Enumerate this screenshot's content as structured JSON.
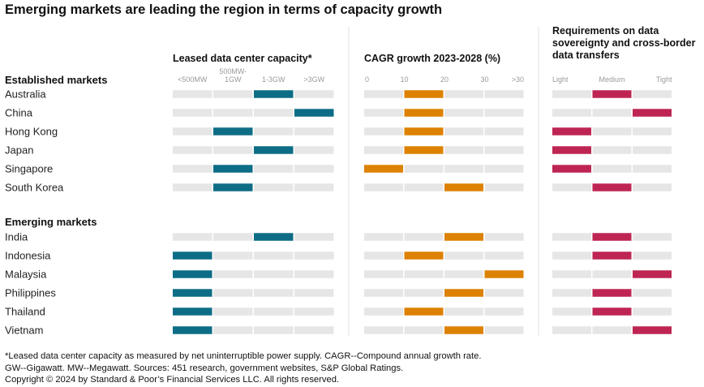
{
  "title": "Emerging markets are leading the region in terms of capacity growth",
  "chart_data": {
    "type": "table",
    "panels": [
      {
        "title": "Leased data center capacity*",
        "levels": [
          "<500MW",
          "500MW-\n1GW",
          "1-3GW",
          ">3GW"
        ],
        "color": "#0e6d86"
      },
      {
        "title": "CAGR growth 2023-2028 (%)",
        "levels": [
          "0",
          "10",
          "20",
          "30",
          ">30"
        ],
        "color": "#dd8100"
      },
      {
        "title": "Requirements on data\nsovereignty and cross-border\ndata transfers",
        "levels": [
          "Light",
          "Medium",
          "Tight"
        ],
        "color": "#be2553"
      }
    ],
    "groups": [
      {
        "name": "Established markets",
        "rows": [
          {
            "market": "Australia",
            "capacity": "1-3GW",
            "cagr": "10-20",
            "requirements": "Medium"
          },
          {
            "market": "China",
            "capacity": ">3GW",
            "cagr": "10-20",
            "requirements": "Tight"
          },
          {
            "market": "Hong Kong",
            "capacity": "500MW-1GW",
            "cagr": "10-20",
            "requirements": "Light"
          },
          {
            "market": "Japan",
            "capacity": "1-3GW",
            "cagr": "10-20",
            "requirements": "Light"
          },
          {
            "market": "Singapore",
            "capacity": "500MW-1GW",
            "cagr": "0-10",
            "requirements": "Light"
          },
          {
            "market": "South Korea",
            "capacity": "500MW-1GW",
            "cagr": "20-30",
            "requirements": "Medium"
          }
        ]
      },
      {
        "name": "Emerging markets",
        "rows": [
          {
            "market": "India",
            "capacity": "1-3GW",
            "cagr": "20-30",
            "requirements": "Medium"
          },
          {
            "market": "Indonesia",
            "capacity": "<500MW",
            "cagr": "10-20",
            "requirements": "Medium"
          },
          {
            "market": "Malaysia",
            "capacity": "<500MW",
            "cagr": ">30",
            "requirements": "Tight"
          },
          {
            "market": "Philippines",
            "capacity": "<500MW",
            "cagr": "20-30",
            "requirements": "Medium"
          },
          {
            "market": "Thailand",
            "capacity": "<500MW",
            "cagr": "10-20",
            "requirements": "Medium"
          },
          {
            "market": "Vietnam",
            "capacity": "<500MW",
            "cagr": "20-30",
            "requirements": "Tight"
          }
        ]
      }
    ]
  },
  "footnotes": [
    "*Leased data center capacity as measured by net uninterruptible power supply. CAGR--Compound annual growth rate.",
    "GW--Gigawatt. MW--Megawatt. Sources: 451 research, government websites, S&P Global Ratings.",
    "Copyright © 2024 by Standard & Poor’s Financial Services LLC. All rights reserved."
  ]
}
